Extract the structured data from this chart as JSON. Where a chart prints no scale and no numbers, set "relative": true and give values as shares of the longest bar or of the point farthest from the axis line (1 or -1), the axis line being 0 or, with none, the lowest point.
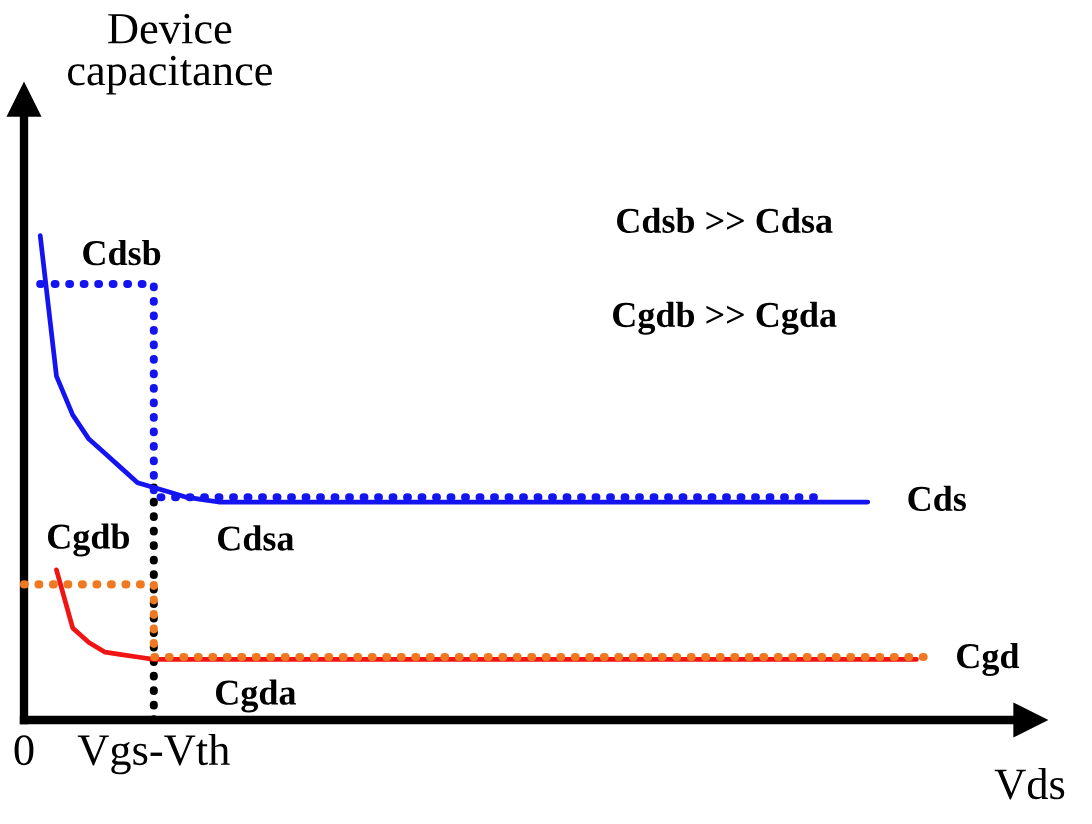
{
  "chart_data": {
    "type": "line",
    "relative": true,
    "ylabel": "Device\ncapacitance",
    "xlabel": "Vds",
    "categories": [
      "0",
      null,
      null,
      null,
      null,
      null,
      null,
      null,
      "Vgs-Vth",
      null,
      null,
      null,
      null,
      null,
      null,
      null,
      null,
      null,
      null,
      null,
      null,
      null,
      null,
      null,
      null,
      null,
      null,
      null,
      null,
      null,
      null,
      null,
      null,
      null,
      null,
      null,
      null,
      null,
      null,
      null,
      null,
      null,
      null,
      null,
      null,
      null,
      null,
      null,
      null,
      null,
      null,
      null,
      null,
      null,
      null,
      null,
      null,
      null,
      null,
      null,
      null,
      null,
      null
    ],
    "series": [
      {
        "name": "Cds",
        "color": "#1414f0",
        "line_style": "solid",
        "values": [
          null,
          1.0,
          0.71,
          0.63,
          0.58,
          0.55,
          0.52,
          0.49,
          0.48,
          0.47,
          0.46,
          0.455,
          0.45,
          0.45,
          0.45,
          0.45,
          0.45,
          0.45,
          0.45,
          0.45,
          0.45,
          0.45,
          0.45,
          0.45,
          0.45,
          0.45,
          0.45,
          0.45,
          0.45,
          0.45,
          0.45,
          0.45,
          0.45,
          0.45,
          0.45,
          0.45,
          0.45,
          0.45,
          0.45,
          0.45,
          0.45,
          0.45,
          0.45,
          0.45,
          0.45,
          0.45,
          0.45,
          0.45,
          0.45,
          0.45,
          0.45,
          0.45,
          0.45,
          null,
          null,
          null,
          null,
          null,
          null,
          null,
          null,
          null,
          null
        ]
      },
      {
        "type": "step",
        "color": "#1414f0",
        "line_style": "dotted",
        "values": [
          null,
          0.9,
          0.9,
          0.9,
          0.9,
          0.9,
          0.9,
          0.9,
          0.46,
          0.46,
          0.46,
          0.46,
          0.46,
          0.46,
          0.46,
          0.46,
          0.46,
          0.46,
          0.46,
          0.46,
          0.46,
          0.46,
          0.46,
          0.46,
          0.46,
          0.46,
          0.46,
          0.46,
          0.46,
          0.46,
          0.46,
          0.46,
          0.46,
          0.46,
          0.46,
          0.46,
          0.46,
          0.46,
          0.46,
          0.46,
          0.46,
          0.46,
          0.46,
          0.46,
          0.46,
          0.46,
          0.46,
          0.46,
          0.46,
          0.46,
          null,
          null,
          null,
          null,
          null,
          null,
          null,
          null,
          null,
          null,
          null,
          null,
          null
        ]
      },
      {
        "name": "Cgd",
        "color": "#f01414",
        "line_style": "solid",
        "values": [
          null,
          null,
          0.31,
          0.19,
          0.16,
          0.14,
          0.135,
          0.13,
          0.125,
          0.125,
          0.125,
          0.125,
          0.125,
          0.125,
          0.125,
          0.125,
          0.125,
          0.125,
          0.125,
          0.125,
          0.125,
          0.125,
          0.125,
          0.125,
          0.125,
          0.125,
          0.125,
          0.125,
          0.125,
          0.125,
          0.125,
          0.125,
          0.125,
          0.125,
          0.125,
          0.125,
          0.125,
          0.125,
          0.125,
          0.125,
          0.125,
          0.125,
          0.125,
          0.125,
          0.125,
          0.125,
          0.125,
          0.125,
          0.125,
          0.125,
          0.125,
          0.125,
          0.125,
          0.125,
          0.125,
          0.125,
          null,
          null,
          null,
          null,
          null,
          null,
          null
        ]
      },
      {
        "type": "step",
        "color": "#f07820",
        "line_style": "dotted",
        "values": [
          0.28,
          0.28,
          0.28,
          0.28,
          0.28,
          0.28,
          0.28,
          0.28,
          0.13,
          0.13,
          0.13,
          0.13,
          0.13,
          0.13,
          0.13,
          0.13,
          0.13,
          0.13,
          0.13,
          0.13,
          0.13,
          0.13,
          0.13,
          0.13,
          0.13,
          0.13,
          0.13,
          0.13,
          0.13,
          0.13,
          0.13,
          0.13,
          0.13,
          0.13,
          0.13,
          0.13,
          0.13,
          0.13,
          0.13,
          0.13,
          0.13,
          0.13,
          0.13,
          0.13,
          0.13,
          0.13,
          0.13,
          0.13,
          0.13,
          0.13,
          0.13,
          0.13,
          0.13,
          0.13,
          0.13,
          0.13,
          0.13,
          null,
          null,
          null,
          null,
          null,
          null
        ]
      }
    ],
    "ref_lines": [
      {
        "axis": "x",
        "value": "Vgs-Vth",
        "color": "#000000",
        "line_style": "dotted"
      }
    ],
    "annotations": [
      {
        "text": "Cdsb",
        "y": 0.9
      },
      {
        "text": "Cdsa",
        "y": 0.46
      },
      {
        "text": "Cgdb",
        "y": 0.28
      },
      {
        "text": "Cgda",
        "y": 0.13
      },
      "Cdsb >> Cdsa",
      "Cgdb >> Cgda"
    ]
  }
}
